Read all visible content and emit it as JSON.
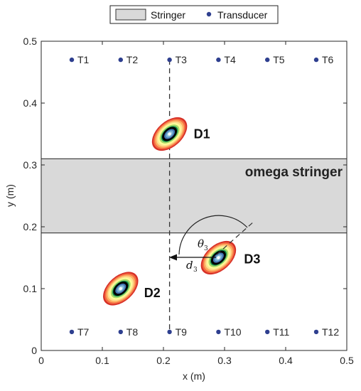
{
  "chart_data": {
    "type": "scatter",
    "xlabel": "x (m)",
    "ylabel": "y (m)",
    "xlim": [
      0,
      0.5
    ],
    "ylim": [
      0,
      0.5
    ],
    "xticks": [
      "0",
      "0.1",
      "0.2",
      "0.3",
      "0.4",
      "0.5"
    ],
    "yticks": [
      "0",
      "0.1",
      "0.2",
      "0.3",
      "0.4",
      "0.5"
    ],
    "grid": false,
    "legend": {
      "placement": "top-outside",
      "entries": [
        {
          "label": "Stringer",
          "marker": "patch",
          "color": "#d9d9d9"
        },
        {
          "label": "Transducer",
          "marker": "dot",
          "color": "#2e3f8f"
        }
      ]
    },
    "stringer": {
      "label": "omega stringer",
      "y_range": [
        0.19,
        0.31
      ],
      "color": "#d9d9d9"
    },
    "transducers": [
      {
        "label": "T1",
        "x": 0.05,
        "y": 0.47
      },
      {
        "label": "T2",
        "x": 0.13,
        "y": 0.47
      },
      {
        "label": "T3",
        "x": 0.21,
        "y": 0.47
      },
      {
        "label": "T4",
        "x": 0.29,
        "y": 0.47
      },
      {
        "label": "T5",
        "x": 0.37,
        "y": 0.47
      },
      {
        "label": "T6",
        "x": 0.45,
        "y": 0.47
      },
      {
        "label": "T7",
        "x": 0.05,
        "y": 0.03
      },
      {
        "label": "T8",
        "x": 0.13,
        "y": 0.03
      },
      {
        "label": "T9",
        "x": 0.21,
        "y": 0.03
      },
      {
        "label": "T10",
        "x": 0.29,
        "y": 0.03
      },
      {
        "label": "T11",
        "x": 0.37,
        "y": 0.03
      },
      {
        "label": "T12",
        "x": 0.45,
        "y": 0.03
      }
    ],
    "damages": [
      {
        "label": "D1",
        "x": 0.21,
        "y": 0.35
      },
      {
        "label": "D2",
        "x": 0.13,
        "y": 0.1
      },
      {
        "label": "D3",
        "x": 0.29,
        "y": 0.15
      }
    ],
    "reference_line": {
      "x": 0.21,
      "y_range": [
        0.03,
        0.47
      ]
    },
    "annotations": {
      "angle": "θ",
      "angle_sub": "3",
      "distance": "d",
      "distance_sub": "3"
    },
    "contour_colors": [
      "#d73027",
      "#f46d43",
      "#fdae61",
      "#fee090",
      "#ffff99",
      "#a6d96a",
      "#1a9850",
      "#000000",
      "#4575b4",
      "#74add1",
      "#abd9e9"
    ],
    "transducer_color": "#2e3f8f"
  }
}
